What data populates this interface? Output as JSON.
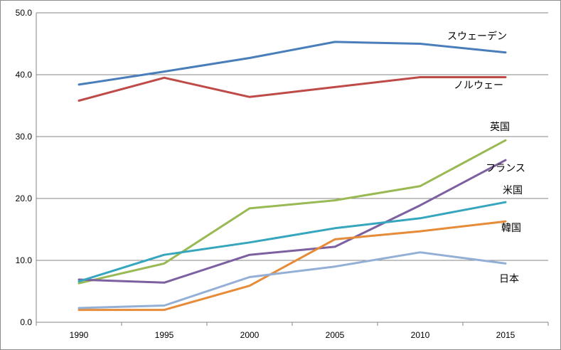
{
  "chart_data": {
    "type": "line",
    "title": "",
    "xlabel": "",
    "ylabel": "",
    "x": [
      "1990",
      "1995",
      "2000",
      "2005",
      "2010",
      "2015"
    ],
    "ylim": [
      0,
      50
    ],
    "yticks": [
      "0.0",
      "10.0",
      "20.0",
      "30.0",
      "40.0",
      "50.0"
    ],
    "grid": true,
    "legend": "inline labels at right end of each line",
    "series": [
      {
        "name": "スウェーデン",
        "color": "#4a7ebb",
        "values": [
          38.4,
          40.5,
          42.7,
          45.3,
          45.0,
          43.6
        ]
      },
      {
        "name": "ノルウェー",
        "color": "#be4b48",
        "values": [
          35.8,
          39.5,
          36.4,
          38.0,
          39.6,
          39.6
        ]
      },
      {
        "name": "英国",
        "color": "#98b954",
        "values": [
          6.3,
          9.5,
          18.4,
          19.7,
          22.0,
          29.4
        ]
      },
      {
        "name": "フランス",
        "color": "#7d60a0",
        "values": [
          6.9,
          6.4,
          10.9,
          12.2,
          18.9,
          26.2
        ]
      },
      {
        "name": "米国",
        "color": "#36a6bf",
        "values": [
          6.6,
          10.9,
          12.9,
          15.2,
          16.8,
          19.4
        ]
      },
      {
        "name": "韓国",
        "color": "#e68b38",
        "values": [
          2.0,
          2.0,
          5.9,
          13.4,
          14.7,
          16.3
        ]
      },
      {
        "name": "日本",
        "color": "#94afd6",
        "values": [
          2.3,
          2.7,
          7.3,
          9.0,
          11.3,
          9.5
        ]
      }
    ]
  }
}
